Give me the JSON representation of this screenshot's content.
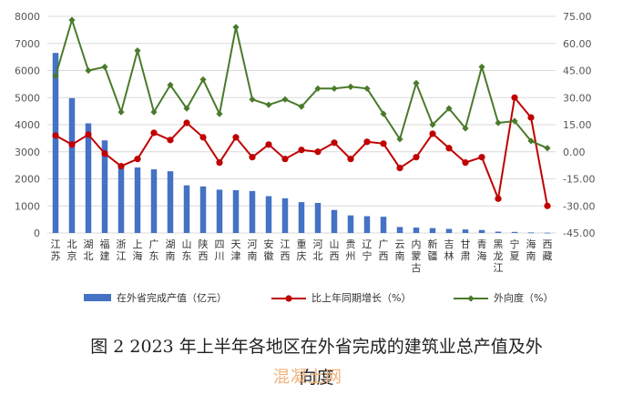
{
  "chart_data": {
    "type": "bar+line",
    "categories": [
      "江苏",
      "北京",
      "湖北",
      "福建",
      "浙江",
      "上海",
      "广东",
      "湖南",
      "山东",
      "陕西",
      "四川",
      "天津",
      "河南",
      "安徽",
      "江西",
      "重庆",
      "河北",
      "山西",
      "贵州",
      "辽宁",
      "广西",
      "云南",
      "内蒙古",
      "新疆",
      "吉林",
      "甘肃",
      "青海",
      "黑龙江",
      "宁夏",
      "海南",
      "西藏"
    ],
    "y_left": {
      "min": 0,
      "max": 8000,
      "ticks": [
        "0",
        "1000",
        "2000",
        "3000",
        "4000",
        "5000",
        "6000",
        "7000",
        "8000"
      ]
    },
    "y_right": {
      "min": -45,
      "max": 75,
      "ticks": [
        "-45.00",
        "-30.00",
        "-15.00",
        "0.00",
        "15.00",
        "30.00",
        "45.00",
        "60.00",
        "75.00"
      ]
    },
    "series": [
      {
        "name": "在外省完成产值（亿元）",
        "kind": "bar",
        "axis": "left",
        "color": "#4472c4",
        "values": [
          6650,
          4980,
          4050,
          3420,
          2520,
          2420,
          2350,
          2280,
          1760,
          1720,
          1600,
          1580,
          1550,
          1360,
          1280,
          1140,
          1110,
          850,
          650,
          620,
          600,
          220,
          200,
          180,
          150,
          130,
          110,
          50,
          40,
          20,
          10
        ]
      },
      {
        "name": "比上年同期增长（%）",
        "kind": "line",
        "axis": "right",
        "color": "#c00000",
        "values": [
          9,
          4,
          9.5,
          -1,
          -8,
          -4,
          10.5,
          6.5,
          16,
          8,
          -6,
          8,
          -3,
          4,
          -4,
          1,
          0,
          5,
          -4,
          5.5,
          4.5,
          -9,
          -3,
          10,
          2,
          -6,
          -3,
          -26,
          30,
          19,
          -30
        ]
      },
      {
        "name": "外向度（%）",
        "kind": "line",
        "axis": "right",
        "color": "#4a7a2c",
        "values": [
          42,
          73,
          45,
          47,
          22,
          56,
          22,
          37,
          24,
          40,
          21,
          69,
          29,
          26,
          29,
          25,
          35,
          35,
          36,
          35,
          21,
          7,
          38,
          15,
          24,
          13,
          47,
          16,
          17,
          6,
          2
        ]
      }
    ]
  },
  "caption": {
    "line1": "图 2 2023 年上半年各地区在外省完成的建筑业总产值及外",
    "line2": "向度"
  },
  "watermark": "混凝土网"
}
